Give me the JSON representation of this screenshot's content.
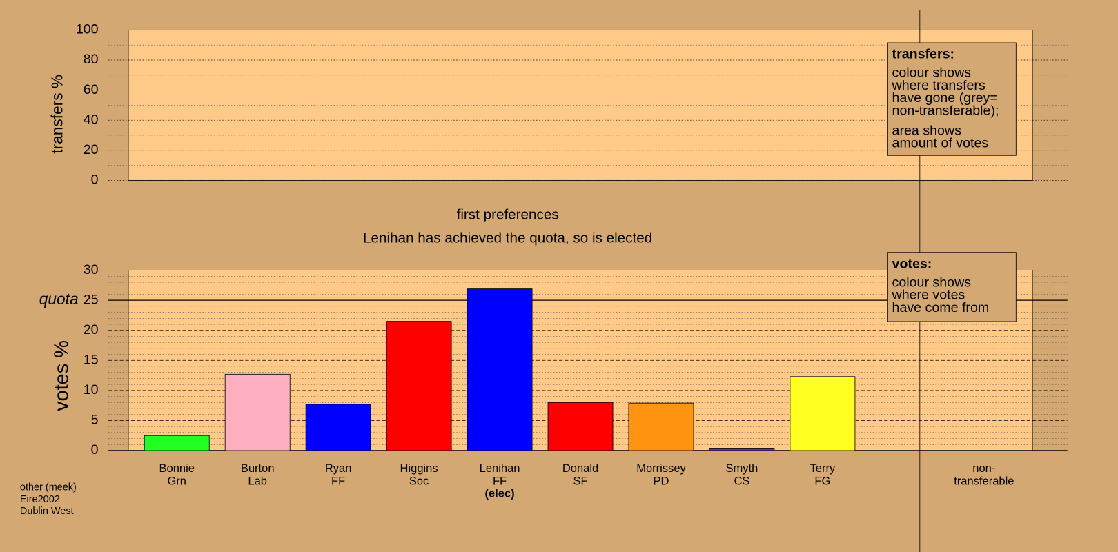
{
  "chart_data": [
    {
      "type": "bar",
      "ylabel": "transfers %",
      "ylim": [
        0,
        100
      ],
      "yticks": [
        0,
        20,
        40,
        60,
        80,
        100
      ],
      "grid": true,
      "grid_minor_divisions": 2,
      "legend": {
        "title": "transfers:",
        "paragraphs": [
          [
            "colour shows",
            "where transfers",
            "have gone (grey=",
            "non-transferable);"
          ],
          [
            "area shows",
            "amount of votes"
          ]
        ]
      }
    },
    {
      "type": "bar",
      "title": "first preferences",
      "subtitle": "Lenihan has achieved the quota, so is elected",
      "ylabel": "votes %",
      "categories": [
        [
          "Bonnie",
          "Grn"
        ],
        [
          "Burton",
          "Lab"
        ],
        [
          "Ryan",
          "FF"
        ],
        [
          "Higgins",
          "Soc"
        ],
        [
          "Lenihan",
          "FF",
          "(elec)"
        ],
        [
          "Donald",
          "SF"
        ],
        [
          "Morrissey",
          "PD"
        ],
        [
          "Smyth",
          "CS"
        ],
        [
          "Terry",
          "FG"
        ],
        [
          "non-",
          "transferable"
        ]
      ],
      "values": [
        2.5,
        12.7,
        7.7,
        21.5,
        26.9,
        8.0,
        7.9,
        0.4,
        12.3,
        null
      ],
      "colors": [
        "#22ff22",
        "#ffb0c0",
        "#0000ff",
        "#ff0000",
        "#0000ff",
        "#ff0000",
        "#ff9411",
        "#7722bb",
        "#ffff22",
        null
      ],
      "ylim": [
        0,
        30
      ],
      "yticks": [
        0,
        5,
        10,
        15,
        20,
        25,
        30
      ],
      "grid": true,
      "grid_minor_divisions": 5,
      "quota": {
        "value": 25,
        "label": "quota"
      },
      "legend": {
        "title": "votes:",
        "paragraphs": [
          [
            "colour shows",
            "where votes",
            "have come from"
          ]
        ]
      }
    }
  ],
  "footer": [
    "other (meek)",
    "Eire2002",
    "Dublin West"
  ]
}
